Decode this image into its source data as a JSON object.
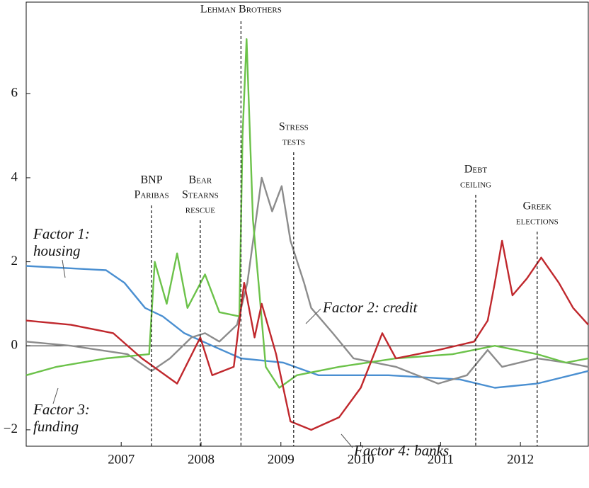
{
  "chart_data": {
    "type": "line",
    "xlim": [
      2005.81,
      2012.85
    ],
    "xticks": [
      2007,
      2008,
      2009,
      2010,
      2011,
      2012
    ],
    "ylim": [
      -2.39,
      8.18
    ],
    "yticks": [
      {
        "value": -2,
        "label": "−2"
      },
      0,
      2,
      4,
      6
    ],
    "zero_line": true,
    "series": [
      {
        "name": "Factor 1: housing",
        "color": "#4a8fd1",
        "x": [
          2005.81,
          2006.81,
          2007.04,
          2007.3,
          2007.52,
          2007.79,
          2008.14,
          2008.5,
          2009.03,
          2009.47,
          2010.35,
          2011.24,
          2011.68,
          2012.21,
          2012.85
        ],
        "values": [
          1.9,
          1.8,
          1.5,
          0.9,
          0.7,
          0.3,
          0.0,
          -0.3,
          -0.4,
          -0.7,
          -0.7,
          -0.8,
          -1.0,
          -0.9,
          -0.6
        ]
      },
      {
        "name": "Factor 2: credit",
        "color": "#8c8c8c",
        "x": [
          2005.81,
          2006.37,
          2007.08,
          2007.38,
          2007.61,
          2007.88,
          2008.05,
          2008.23,
          2008.45,
          2008.58,
          2008.76,
          2008.89,
          2009.01,
          2009.12,
          2009.29,
          2009.38,
          2009.65,
          2009.91,
          2010.44,
          2010.97,
          2011.33,
          2011.59,
          2011.77,
          2012.21,
          2012.57,
          2012.85
        ],
        "values": [
          0.1,
          0.0,
          -0.2,
          -0.6,
          -0.3,
          0.2,
          0.3,
          0.1,
          0.5,
          1.5,
          4.0,
          3.2,
          3.8,
          2.5,
          1.5,
          0.9,
          0.3,
          -0.3,
          -0.5,
          -0.9,
          -0.7,
          -0.1,
          -0.5,
          -0.3,
          -0.4,
          -0.5
        ]
      },
      {
        "name": "Factor 3: funding",
        "color": "#6cc24a",
        "x": [
          2005.81,
          2006.19,
          2006.81,
          2007.35,
          2007.42,
          2007.57,
          2007.7,
          2007.83,
          2008.05,
          2008.23,
          2008.48,
          2008.52,
          2008.57,
          2008.65,
          2008.72,
          2008.81,
          2008.98,
          2009.2,
          2009.73,
          2010.44,
          2011.15,
          2011.68,
          2012.21,
          2012.57,
          2012.85
        ],
        "values": [
          -0.7,
          -0.5,
          -0.3,
          -0.2,
          2.0,
          1.0,
          2.2,
          0.9,
          1.7,
          0.8,
          0.7,
          5.0,
          7.3,
          3.0,
          1.5,
          -0.5,
          -1.0,
          -0.7,
          -0.5,
          -0.3,
          -0.2,
          0.0,
          -0.2,
          -0.4,
          -0.3
        ]
      },
      {
        "name": "Factor 4: banks",
        "color": "#c0282d",
        "x": [
          2005.81,
          2006.37,
          2006.9,
          2007.26,
          2007.7,
          2007.99,
          2008.14,
          2008.41,
          2008.54,
          2008.67,
          2008.76,
          2008.94,
          2009.12,
          2009.38,
          2009.73,
          2010.0,
          2010.27,
          2010.44,
          2010.97,
          2011.42,
          2011.59,
          2011.68,
          2011.77,
          2011.9,
          2012.08,
          2012.26,
          2012.48,
          2012.66,
          2012.85
        ],
        "values": [
          0.6,
          0.5,
          0.3,
          -0.3,
          -0.9,
          0.2,
          -0.7,
          -0.5,
          1.5,
          0.2,
          1.0,
          -0.2,
          -1.8,
          -2.0,
          -1.7,
          -1.0,
          0.3,
          -0.3,
          -0.1,
          0.1,
          0.6,
          1.5,
          2.5,
          1.2,
          1.6,
          2.1,
          1.5,
          0.9,
          0.5
        ]
      }
    ],
    "events": [
      {
        "x": 2007.38,
        "label": [
          "BNP",
          "Paribas"
        ]
      },
      {
        "x": 2007.99,
        "label": [
          "Bear",
          "Stearns",
          "rescue"
        ]
      },
      {
        "x": 2008.5,
        "label": [
          "Lehman Brothers"
        ]
      },
      {
        "x": 2009.16,
        "label": [
          "Stress",
          "tests"
        ]
      },
      {
        "x": 2011.44,
        "label": [
          "Debt",
          "ceiling"
        ]
      },
      {
        "x": 2012.21,
        "label": [
          "Greek",
          "elections"
        ]
      }
    ]
  }
}
